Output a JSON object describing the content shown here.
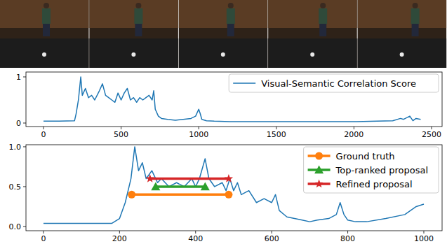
{
  "chart_data": [
    {
      "type": "line",
      "xlim": [
        -113,
        2568
      ],
      "ylim": [
        -0.076,
        1.106
      ],
      "xticks": [
        0,
        500,
        1000,
        1500,
        2000,
        2500
      ],
      "yticks": [
        0,
        1
      ],
      "legend": "upper right",
      "series": [
        {
          "name": "Visual-Semantic Correlation Score",
          "color": "#1f77b4",
          "x": [
            0,
            100,
            200,
            210,
            225,
            240,
            250,
            270,
            290,
            310,
            330,
            360,
            380,
            400,
            420,
            440,
            460,
            480,
            500,
            520,
            540,
            560,
            580,
            600,
            620,
            640,
            660,
            680,
            700,
            710,
            720,
            740,
            760,
            800,
            850,
            900,
            950,
            980,
            1000,
            1010,
            1020,
            1050,
            1100,
            1200,
            1500,
            1800,
            2000,
            2150,
            2250,
            2300,
            2320,
            2360,
            2380,
            2400,
            2430
          ],
          "values": [
            0.04,
            0.04,
            0.05,
            0.2,
            0.5,
            1.0,
            0.6,
            0.75,
            0.55,
            0.6,
            0.5,
            0.7,
            0.85,
            0.6,
            0.55,
            0.5,
            0.45,
            0.65,
            0.5,
            0.65,
            0.75,
            0.5,
            0.55,
            0.45,
            0.55,
            0.5,
            0.55,
            0.6,
            0.5,
            0.7,
            0.3,
            0.15,
            0.1,
            0.08,
            0.06,
            0.08,
            0.1,
            0.15,
            0.3,
            0.2,
            0.08,
            0.05,
            0.04,
            0.03,
            0.03,
            0.03,
            0.03,
            0.04,
            0.05,
            0.1,
            0.08,
            0.15,
            0.05,
            0.1,
            0.08
          ]
        }
      ]
    },
    {
      "type": "line",
      "xlim": [
        -46,
        1048
      ],
      "ylim": [
        -0.053,
        1.026
      ],
      "xticks": [
        0,
        200,
        400,
        600,
        800,
        1000
      ],
      "yticks": [
        {
          "value": 0,
          "label": "0.0"
        },
        {
          "value": 0.5,
          "label": "0.5"
        },
        {
          "value": 1,
          "label": "1.0"
        }
      ],
      "legend": "upper right",
      "series": [
        {
          "color": "#1f77b4",
          "x": [
            0,
            100,
            180,
            200,
            215,
            230,
            240,
            250,
            260,
            270,
            285,
            300,
            310,
            330,
            350,
            370,
            390,
            400,
            410,
            425,
            435,
            450,
            470,
            480,
            490,
            500,
            510,
            520,
            540,
            560,
            580,
            600,
            610,
            620,
            640,
            660,
            680,
            700,
            720,
            750,
            770,
            780,
            790,
            800,
            820,
            850,
            900,
            950,
            980,
            1000
          ],
          "values": [
            0.04,
            0.04,
            0.04,
            0.1,
            0.3,
            0.6,
            1.0,
            0.7,
            0.8,
            0.6,
            0.7,
            0.55,
            0.6,
            0.5,
            0.55,
            0.5,
            0.6,
            0.5,
            0.6,
            0.85,
            0.6,
            0.5,
            0.55,
            0.45,
            0.6,
            0.45,
            0.55,
            0.4,
            0.45,
            0.3,
            0.35,
            0.3,
            0.4,
            0.2,
            0.12,
            0.1,
            0.08,
            0.06,
            0.08,
            0.1,
            0.15,
            0.3,
            0.15,
            0.08,
            0.06,
            0.06,
            0.1,
            0.15,
            0.25,
            0.28
          ]
        },
        {
          "name": "Ground truth",
          "color": "#ff7f0e",
          "marker": "circle",
          "x": [
            232,
            487
          ],
          "values": [
            0.4,
            0.4
          ]
        },
        {
          "name": "Top-ranked proposal",
          "color": "#2ca02c",
          "marker": "triangle",
          "x": [
            295,
            425
          ],
          "values": [
            0.5,
            0.5
          ]
        },
        {
          "name": "Refined proposal",
          "color": "#d62728",
          "marker": "star",
          "x": [
            280,
            487
          ],
          "values": [
            0.6,
            0.6
          ]
        }
      ]
    }
  ]
}
